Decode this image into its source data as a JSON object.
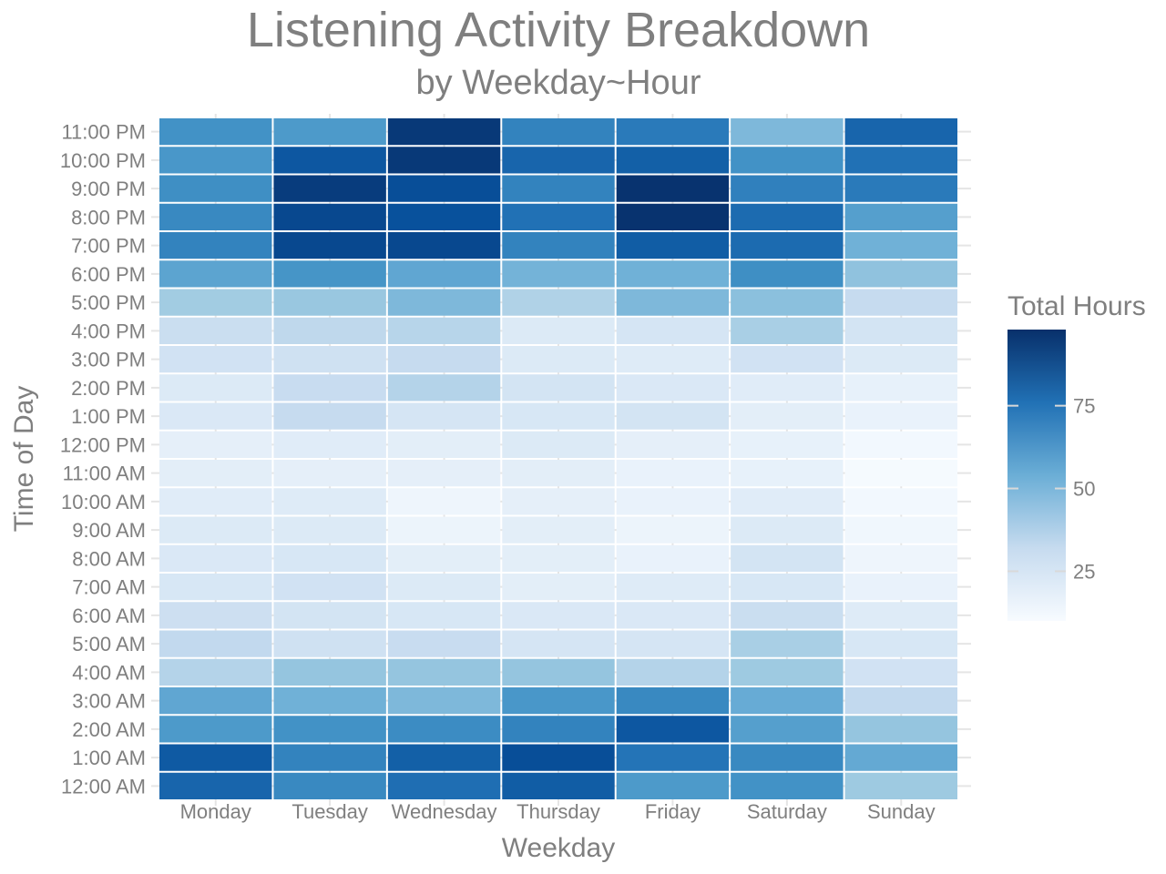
{
  "chart_data": {
    "type": "heatmap",
    "title": "Listening Activity Breakdown",
    "subtitle": "by Weekday~Hour",
    "xlabel": "Weekday",
    "ylabel": "Time of Day",
    "x_categories": [
      "Monday",
      "Tuesday",
      "Wednesday",
      "Thursday",
      "Friday",
      "Saturday",
      "Sunday"
    ],
    "y_categories": [
      "12:00 AM",
      "1:00 AM",
      "2:00 AM",
      "3:00 AM",
      "4:00 AM",
      "5:00 AM",
      "6:00 AM",
      "7:00 AM",
      "8:00 AM",
      "9:00 AM",
      "10:00 AM",
      "11:00 AM",
      "12:00 PM",
      "1:00 PM",
      "2:00 PM",
      "3:00 PM",
      "4:00 PM",
      "5:00 PM",
      "6:00 PM",
      "7:00 PM",
      "8:00 PM",
      "9:00 PM",
      "10:00 PM",
      "11:00 PM"
    ],
    "values": [
      [
        80,
        68,
        77,
        83,
        62,
        65,
        43
      ],
      [
        84,
        70,
        82,
        88,
        75,
        68,
        56
      ],
      [
        62,
        65,
        67,
        70,
        85,
        60,
        45
      ],
      [
        57,
        53,
        50,
        63,
        68,
        55,
        33
      ],
      [
        37,
        45,
        45,
        45,
        37,
        43,
        27
      ],
      [
        33,
        28,
        31,
        25,
        25,
        40,
        24
      ],
      [
        29,
        26,
        24,
        23,
        23,
        30,
        21
      ],
      [
        24,
        27,
        22,
        19,
        21,
        24,
        16
      ],
      [
        23,
        24,
        19,
        19,
        16,
        26,
        14
      ],
      [
        22,
        22,
        15,
        19,
        15,
        22,
        13
      ],
      [
        20,
        21,
        14,
        18,
        16,
        20,
        12
      ],
      [
        19,
        18,
        18,
        19,
        16,
        17,
        11
      ],
      [
        18,
        20,
        19,
        22,
        18,
        17,
        12
      ],
      [
        23,
        32,
        25,
        24,
        26,
        19,
        16
      ],
      [
        22,
        31,
        37,
        26,
        23,
        20,
        17
      ],
      [
        27,
        28,
        32,
        22,
        21,
        27,
        22
      ],
      [
        30,
        34,
        36,
        22,
        25,
        40,
        26
      ],
      [
        42,
        44,
        50,
        38,
        50,
        47,
        32
      ],
      [
        58,
        64,
        57,
        52,
        53,
        66,
        46
      ],
      [
        70,
        90,
        90,
        70,
        83,
        78,
        53
      ],
      [
        68,
        90,
        87,
        76,
        97,
        78,
        60
      ],
      [
        66,
        94,
        88,
        70,
        97,
        71,
        73
      ],
      [
        63,
        85,
        95,
        80,
        82,
        65,
        76
      ],
      [
        65,
        62,
        95,
        70,
        73,
        50,
        80
      ]
    ],
    "color_scale": {
      "low": "#f7fbff",
      "high": "#08306b",
      "min": 10,
      "max": 98
    },
    "legend": {
      "title": "Total Hours",
      "ticks": [
        25,
        50,
        75
      ],
      "position": "right"
    },
    "grid": true
  }
}
